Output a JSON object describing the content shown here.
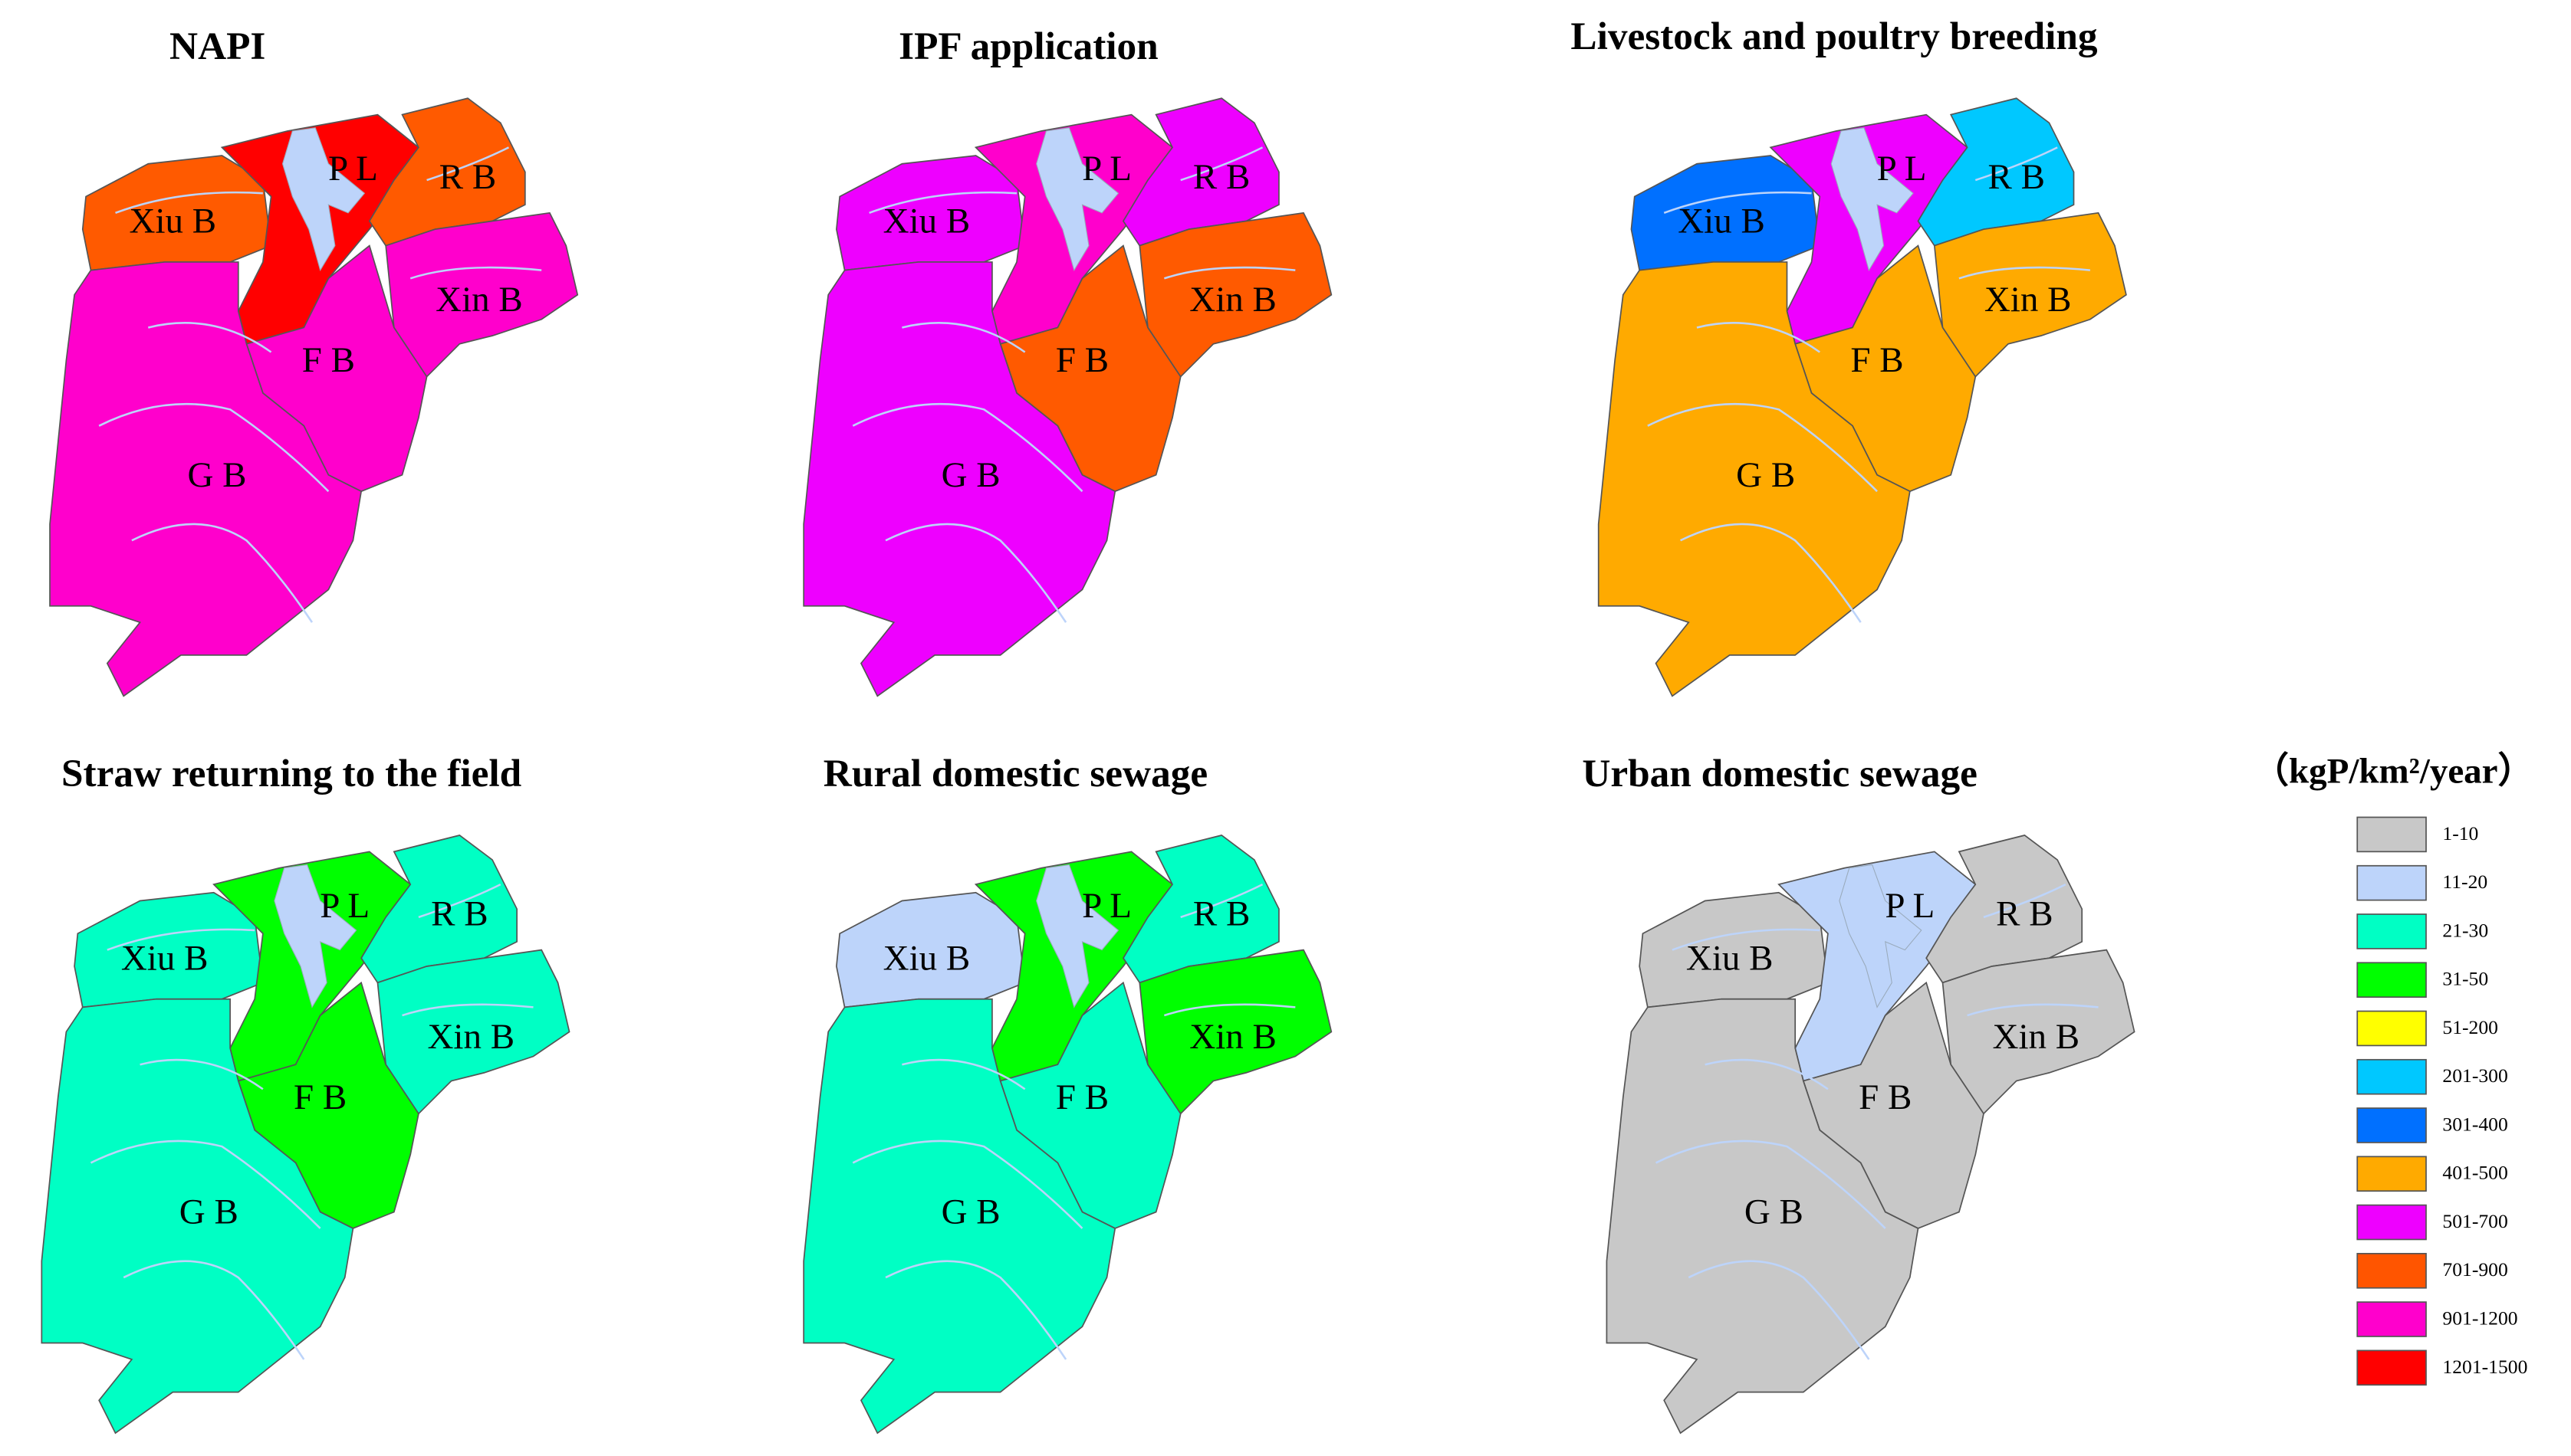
{
  "panels": [
    {
      "title": "NAPI",
      "regions": [
        {
          "label": "Xiu B",
          "color": "#ff5a00"
        },
        {
          "label": "P L",
          "color": "#ff0000"
        },
        {
          "label": "R B",
          "color": "#ff5a00"
        },
        {
          "label": "Xin B",
          "color": "#ff00cc"
        },
        {
          "label": "F B",
          "color": "#ff00cc"
        },
        {
          "label": "G B",
          "color": "#ff00cc"
        }
      ]
    },
    {
      "title": "IPF application",
      "regions": [
        {
          "label": "Xiu B",
          "color": "#ee00ff"
        },
        {
          "label": "P L",
          "color": "#ff00cc"
        },
        {
          "label": "R B",
          "color": "#ee00ff"
        },
        {
          "label": "Xin B",
          "color": "#ff5a00"
        },
        {
          "label": "F B",
          "color": "#ff5a00"
        },
        {
          "label": "G B",
          "color": "#ee00ff"
        }
      ]
    },
    {
      "title": "Livestock and poultry breeding",
      "regions": [
        {
          "label": "Xiu B",
          "color": "#0070ff"
        },
        {
          "label": "P L",
          "color": "#ee00ff"
        },
        {
          "label": "R B",
          "color": "#00c8ff"
        },
        {
          "label": "Xin B",
          "color": "#ffaa00"
        },
        {
          "label": "F B",
          "color": "#ffaa00"
        },
        {
          "label": "G B",
          "color": "#ffaa00"
        }
      ]
    },
    {
      "title": "Straw returning to the field",
      "regions": [
        {
          "label": "Xiu B",
          "color": "#00ffc4"
        },
        {
          "label": "P L",
          "color": "#00ff00"
        },
        {
          "label": "R B",
          "color": "#00ffc4"
        },
        {
          "label": "Xin B",
          "color": "#00ffc4"
        },
        {
          "label": "F B",
          "color": "#00ff00"
        },
        {
          "label": "G B",
          "color": "#00ffc4"
        }
      ]
    },
    {
      "title": "Rural domestic sewage",
      "regions": [
        {
          "label": "Xiu B",
          "color": "#bdd4fa"
        },
        {
          "label": "P L",
          "color": "#00ff00"
        },
        {
          "label": "R B",
          "color": "#00ffc4"
        },
        {
          "label": "Xin B",
          "color": "#00ff00"
        },
        {
          "label": "F B",
          "color": "#00ffc4"
        },
        {
          "label": "G B",
          "color": "#00ffc4"
        }
      ]
    },
    {
      "title": "Urban domestic sewage",
      "regions": [
        {
          "label": "Xiu B",
          "color": "#c8c8c8"
        },
        {
          "label": "P L",
          "color": "#bdd4fa"
        },
        {
          "label": "R B",
          "color": "#c8c8c8"
        },
        {
          "label": "Xin B",
          "color": "#c8c8c8"
        },
        {
          "label": "F B",
          "color": "#c8c8c8"
        },
        {
          "label": "G B",
          "color": "#c8c8c8"
        }
      ]
    }
  ],
  "legend": {
    "title": "（kgP/km²/year）",
    "items": [
      {
        "label": "1-10",
        "color": "#c8c8c8"
      },
      {
        "label": "11-20",
        "color": "#bdd4fa"
      },
      {
        "label": "21-30",
        "color": "#00ffc4"
      },
      {
        "label": "31-50",
        "color": "#00ff00"
      },
      {
        "label": "51-200",
        "color": "#ffff00"
      },
      {
        "label": "201-300",
        "color": "#00c8ff"
      },
      {
        "label": "301-400",
        "color": "#0070ff"
      },
      {
        "label": "401-500",
        "color": "#ffaa00"
      },
      {
        "label": "501-700",
        "color": "#ee00ff"
      },
      {
        "label": "701-900",
        "color": "#ff5500"
      },
      {
        "label": "901-1200",
        "color": "#ff00cc"
      },
      {
        "label": "1201-1500",
        "color": "#ff0000"
      }
    ]
  }
}
